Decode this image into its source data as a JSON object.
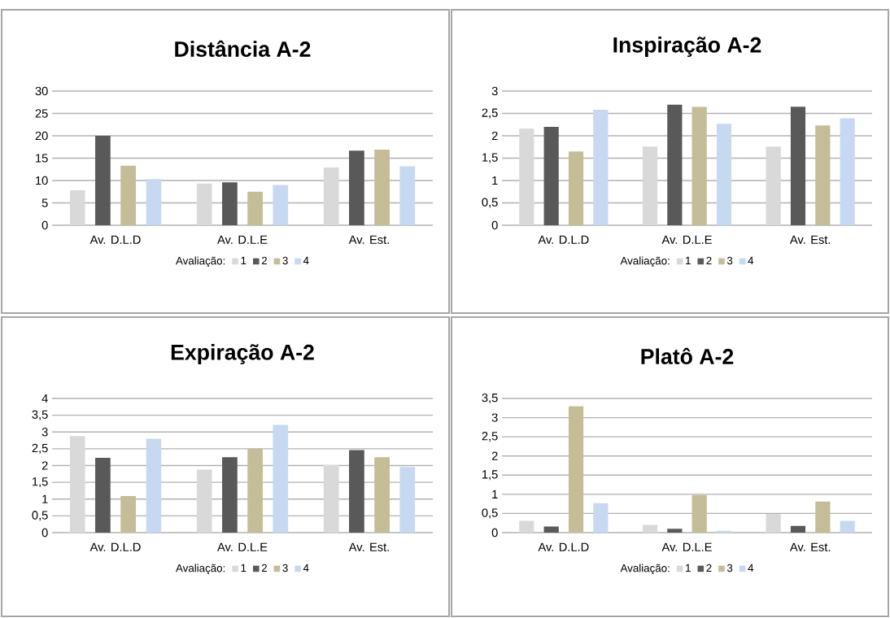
{
  "chart_data": [
    {
      "type": "bar",
      "title": "Distância A-2",
      "categories": [
        "Av. D.L.D",
        "Av. D.L.E",
        "Av. Est."
      ],
      "legend_title": "Avaliação:",
      "legend": "bottom",
      "grid": "y",
      "ylim": [
        0,
        30
      ],
      "yticks": [
        0,
        5,
        10,
        15,
        20,
        25,
        30
      ],
      "series": [
        {
          "name": "1",
          "color": "#d9d9d9",
          "values": [
            7.8,
            9.3,
            12.9
          ]
        },
        {
          "name": "2",
          "color": "#595959",
          "values": [
            20,
            9.6,
            16.7
          ]
        },
        {
          "name": "3",
          "color": "#c4bd97",
          "values": [
            13.3,
            7.5,
            16.9
          ]
        },
        {
          "name": "4",
          "color": "#c6d9f1",
          "values": [
            10.3,
            9.0,
            13.2
          ]
        }
      ]
    },
    {
      "type": "bar",
      "title": "Inspiração A-2",
      "categories": [
        "Av. D.L.D",
        "Av. D.L.E",
        "Av. Est."
      ],
      "legend_title": "Avaliação:",
      "legend": "bottom",
      "grid": "y",
      "ylim": [
        0,
        3
      ],
      "yticks": [
        0,
        {
          "value": 0.5,
          "label": "0,5"
        },
        1,
        {
          "value": 1.5,
          "label": "1,5"
        },
        2,
        {
          "value": 2.5,
          "label": "2,5"
        },
        3
      ],
      "series": [
        {
          "name": "1",
          "color": "#d9d9d9",
          "values": [
            2.16,
            1.76,
            1.76
          ]
        },
        {
          "name": "2",
          "color": "#595959",
          "values": [
            2.2,
            2.7,
            2.65
          ]
        },
        {
          "name": "3",
          "color": "#c4bd97",
          "values": [
            1.65,
            2.65,
            2.23
          ]
        },
        {
          "name": "4",
          "color": "#c6d9f1",
          "values": [
            2.58,
            2.27,
            2.39
          ]
        }
      ]
    },
    {
      "type": "bar",
      "title": "Expiração A-2",
      "categories": [
        "Av. D.L.D",
        "Av. D.L.E",
        "Av. Est."
      ],
      "legend_title": "Avaliação:",
      "legend": "bottom",
      "grid": "y",
      "ylim": [
        0,
        4
      ],
      "yticks": [
        0,
        {
          "value": 0.5,
          "label": "0,5"
        },
        1,
        {
          "value": 1.5,
          "label": "1,5"
        },
        2,
        {
          "value": 2.5,
          "label": "2,5"
        },
        3,
        {
          "value": 3.5,
          "label": "3,5"
        },
        4
      ],
      "series": [
        {
          "name": "1",
          "color": "#d9d9d9",
          "values": [
            2.88,
            1.88,
            2.01
          ]
        },
        {
          "name": "2",
          "color": "#595959",
          "values": [
            2.23,
            2.25,
            2.46
          ]
        },
        {
          "name": "3",
          "color": "#c4bd97",
          "values": [
            1.09,
            2.5,
            2.25
          ]
        },
        {
          "name": "4",
          "color": "#c6d9f1",
          "values": [
            2.8,
            3.21,
            1.96
          ]
        }
      ]
    },
    {
      "type": "bar",
      "title": "Platô A-2",
      "categories": [
        "Av. D.L.D",
        "Av. D.L.E",
        "Av. Est."
      ],
      "legend_title": "Avaliação:",
      "legend": "bottom",
      "grid": "y",
      "ylim": [
        0,
        3.5
      ],
      "yticks": [
        0,
        {
          "value": 0.5,
          "label": "0,5"
        },
        1,
        {
          "value": 1.5,
          "label": "1,5"
        },
        2,
        {
          "value": 2.5,
          "label": "2,5"
        },
        3,
        {
          "value": 3.5,
          "label": "3,5"
        }
      ],
      "series": [
        {
          "name": "1",
          "color": "#d9d9d9",
          "values": [
            0.31,
            0.2,
            0.49
          ]
        },
        {
          "name": "2",
          "color": "#595959",
          "values": [
            0.16,
            0.1,
            0.18
          ]
        },
        {
          "name": "3",
          "color": "#c4bd97",
          "values": [
            3.3,
            0.98,
            0.81
          ]
        },
        {
          "name": "4",
          "color": "#c6d9f1",
          "values": [
            0.77,
            0.05,
            0.31
          ]
        }
      ]
    }
  ]
}
